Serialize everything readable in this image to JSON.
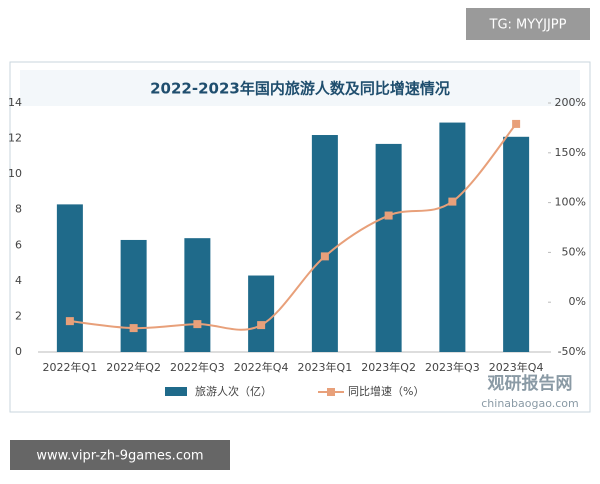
{
  "chart_data": {
    "type": "bar",
    "title": "2022-2023年国内旅游人数及同比增速情况",
    "categories": [
      "2022年Q1",
      "2022年Q2",
      "2022年Q3",
      "2022年Q4",
      "2023年Q1",
      "2023年Q2",
      "2023年Q3",
      "2023年Q4"
    ],
    "series": [
      {
        "name": "旅游人次（亿）",
        "type": "bar",
        "color": "#1f6a8a",
        "values": [
          8.3,
          6.3,
          6.4,
          4.3,
          12.2,
          11.7,
          12.9,
          12.1
        ]
      },
      {
        "name": "同比增速（%）",
        "type": "line",
        "axis": "y2",
        "color": "#e8a07a",
        "values": [
          -19,
          -26,
          -22,
          -23,
          46,
          87,
          101,
          179
        ]
      }
    ],
    "ylim": [
      0,
      14
    ],
    "yticks": [
      0,
      2,
      4,
      6,
      8,
      10,
      12,
      14
    ],
    "y2lim": [
      -50,
      200
    ],
    "y2ticks": [
      {
        "value": -50,
        "label": "-50%"
      },
      {
        "value": 0,
        "label": "0%"
      },
      {
        "value": 50,
        "label": "50%"
      },
      {
        "value": 100,
        "label": "100%"
      },
      {
        "value": 150,
        "label": "150%"
      },
      {
        "value": 200,
        "label": "200%"
      }
    ],
    "grid": false,
    "legend": "bottom"
  },
  "overlays": {
    "top_tag": "TG: MYYJJPP",
    "bottom_url": "www.vipr-zh-9games.com",
    "logo": "观研报告网",
    "logo_url": "chinabaogao.com"
  }
}
